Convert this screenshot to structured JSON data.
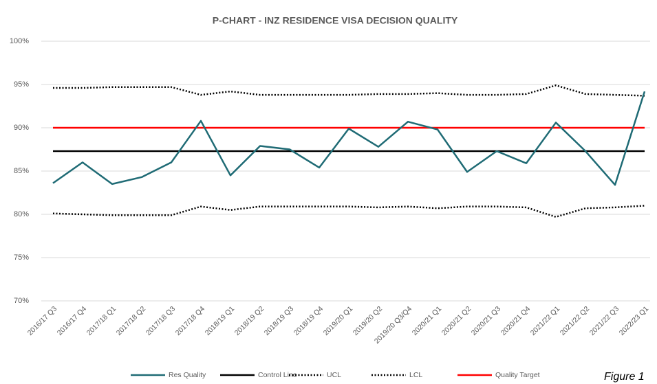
{
  "chart_data": {
    "type": "line",
    "title": "P-CHART - INZ RESIDENCE VISA DECISION QUALITY",
    "annotation": "Figure 1",
    "categories": [
      "2016/17 Q3",
      "2016/17 Q4",
      "2017/18 Q1",
      "2017/18 Q2",
      "2017/18 Q3",
      "2017/18 Q4",
      "2018/19 Q1",
      "2018/19 Q2",
      "2018/19 Q3",
      "2018/19 Q4",
      "2019/20 Q1",
      "2019/20 Q2",
      "2019/20 Q3/Q4",
      "2020/21 Q1",
      "2020/21 Q2",
      "2020/21 Q3",
      "2020/21 Q4",
      "2021/22 Q1",
      "2021/22 Q2",
      "2021/22 Q3",
      "2022/23 Q1"
    ],
    "series": [
      {
        "name": "Res Quality",
        "color": "#1f6b75",
        "style": "solid",
        "values": [
          83.6,
          86.0,
          83.5,
          84.3,
          86.0,
          90.8,
          84.5,
          87.9,
          87.5,
          85.4,
          89.9,
          87.8,
          90.7,
          89.8,
          84.9,
          87.3,
          85.9,
          90.6,
          87.3,
          83.4,
          94.2
        ]
      },
      {
        "name": "Control Line",
        "color": "#000000",
        "style": "solid",
        "values": [
          87.3,
          87.3,
          87.3,
          87.3,
          87.3,
          87.3,
          87.3,
          87.3,
          87.3,
          87.3,
          87.3,
          87.3,
          87.3,
          87.3,
          87.3,
          87.3,
          87.3,
          87.3,
          87.3,
          87.3,
          87.3
        ]
      },
      {
        "name": "UCL",
        "color": "#000000",
        "style": "dotted",
        "values": [
          94.6,
          94.6,
          94.7,
          94.7,
          94.7,
          93.8,
          94.2,
          93.8,
          93.8,
          93.8,
          93.8,
          93.9,
          93.9,
          94.0,
          93.8,
          93.8,
          93.9,
          94.9,
          93.9,
          93.8,
          93.7
        ]
      },
      {
        "name": "LCL",
        "color": "#000000",
        "style": "dotted",
        "values": [
          80.1,
          80.0,
          79.9,
          79.9,
          79.9,
          80.9,
          80.5,
          80.9,
          80.9,
          80.9,
          80.9,
          80.8,
          80.9,
          80.7,
          80.9,
          80.9,
          80.8,
          79.7,
          80.7,
          80.8,
          81.0
        ]
      },
      {
        "name": "Quality Target",
        "color": "#ff0000",
        "style": "solid",
        "values": [
          90,
          90,
          90,
          90,
          90,
          90,
          90,
          90,
          90,
          90,
          90,
          90,
          90,
          90,
          90,
          90,
          90,
          90,
          90,
          90,
          90
        ]
      }
    ],
    "ylim": [
      70,
      100
    ],
    "yticks": [
      {
        "value": 70,
        "label": "70%"
      },
      {
        "value": 75,
        "label": "75%"
      },
      {
        "value": 80,
        "label": "80%"
      },
      {
        "value": 85,
        "label": "85%"
      },
      {
        "value": 90,
        "label": "90%"
      },
      {
        "value": 95,
        "label": "95%"
      },
      {
        "value": 100,
        "label": "100%"
      }
    ],
    "grid": true,
    "legend": "bottom"
  }
}
